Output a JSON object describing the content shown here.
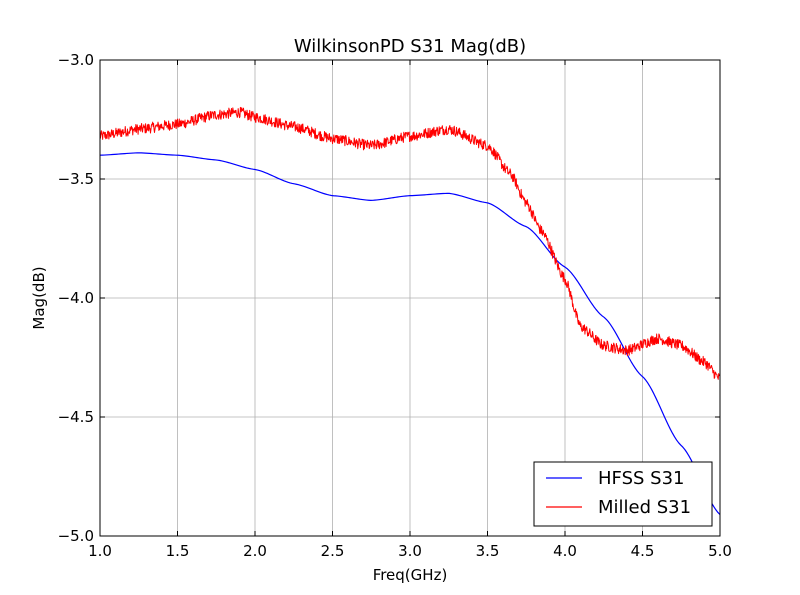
{
  "chart_data": {
    "type": "line",
    "title": "WilkinsonPD S31 Mag(dB)",
    "xlabel": "Freq(GHz)",
    "ylabel": "Mag(dB)",
    "xlim": [
      1.0,
      5.0
    ],
    "ylim": [
      -5.0,
      -3.0
    ],
    "x_ticks": [
      "1.0",
      "1.5",
      "2.0",
      "2.5",
      "3.0",
      "3.5",
      "4.0",
      "4.5",
      "5.0"
    ],
    "y_ticks": [
      "−3.0",
      "−3.5",
      "−4.0",
      "−4.5",
      "−5.0"
    ],
    "grid": true,
    "legend_position": "lower-right",
    "series": [
      {
        "name": "HFSS S31",
        "color": "#0000ff",
        "noisy": false,
        "x": [
          1.0,
          1.25,
          1.5,
          1.75,
          2.0,
          2.25,
          2.5,
          2.75,
          3.0,
          3.25,
          3.5,
          3.75,
          4.0,
          4.25,
          4.5,
          4.75,
          5.0
        ],
        "y": [
          -3.4,
          -3.39,
          -3.4,
          -3.42,
          -3.46,
          -3.52,
          -3.57,
          -3.59,
          -3.57,
          -3.56,
          -3.6,
          -3.7,
          -3.87,
          -4.08,
          -4.33,
          -4.62,
          -4.91
        ]
      },
      {
        "name": "Milled S31",
        "color": "#ff0000",
        "noisy": true,
        "x": [
          1.0,
          1.25,
          1.5,
          1.75,
          1.9,
          2.0,
          2.25,
          2.5,
          2.75,
          3.0,
          3.25,
          3.5,
          3.65,
          3.75,
          3.85,
          4.0,
          4.1,
          4.25,
          4.4,
          4.6,
          4.75,
          4.9,
          5.0
        ],
        "y": [
          -3.32,
          -3.29,
          -3.27,
          -3.23,
          -3.22,
          -3.24,
          -3.28,
          -3.33,
          -3.36,
          -3.32,
          -3.29,
          -3.36,
          -3.48,
          -3.6,
          -3.72,
          -3.92,
          -4.12,
          -4.2,
          -4.22,
          -4.17,
          -4.2,
          -4.27,
          -4.34
        ]
      }
    ]
  }
}
